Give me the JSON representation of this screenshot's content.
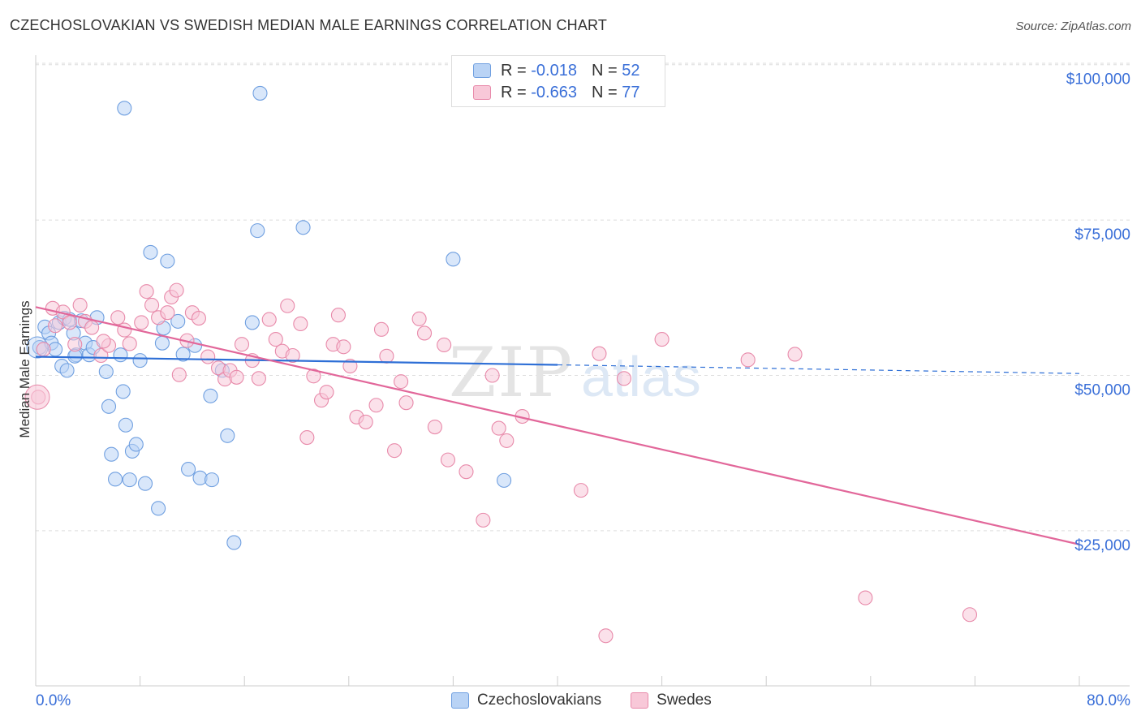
{
  "title": "CZECHOSLOVAKIAN VS SWEDISH MEDIAN MALE EARNINGS CORRELATION CHART",
  "source": "Source: ZipAtlas.com",
  "colors": {
    "blue_fill": "#b9d3f5",
    "blue_stroke": "#6f9fe0",
    "blue_line": "#2e6fd6",
    "pink_fill": "#f8c8d8",
    "pink_stroke": "#e88aaa",
    "pink_line": "#e2679a",
    "tick_label": "#3a6fd8"
  },
  "legend": {
    "rows": [
      {
        "r_label": "R =",
        "r_value": "-0.018",
        "n_label": "N =",
        "n_value": "52"
      },
      {
        "r_label": "R =",
        "r_value": "-0.663",
        "n_label": "N =",
        "n_value": "77"
      }
    ],
    "bottom": [
      "Czechoslovakians",
      "Swedes"
    ]
  },
  "chart_data": {
    "type": "scatter",
    "title": "CZECHOSLOVAKIAN VS SWEDISH MEDIAN MALE EARNINGS CORRELATION CHART",
    "xlabel": "",
    "ylabel": "Median Male Earnings",
    "xlim": [
      0,
      80
    ],
    "ylim": [
      0,
      105000
    ],
    "x_tick_labels": [
      "0.0%",
      "80.0%"
    ],
    "y_ticks": [
      25000,
      50000,
      75000,
      100000
    ],
    "y_tick_labels": [
      "$25,000",
      "$50,000",
      "$75,000",
      "$100,000"
    ],
    "grid": true,
    "watermark": "ZIPatlas",
    "series": [
      {
        "name": "Czechoslovakians",
        "trend": {
          "x0": 0,
          "y0": 53000,
          "x1": 40,
          "y1": 51700,
          "dashed_to_x": 80,
          "dashed_y": 50300
        },
        "points": [
          [
            0.3,
            54500
          ],
          [
            0.7,
            57800
          ],
          [
            1.0,
            56800
          ],
          [
            1.2,
            55200
          ],
          [
            1.5,
            54200
          ],
          [
            1.8,
            58500
          ],
          [
            2.0,
            51500
          ],
          [
            2.2,
            59200
          ],
          [
            2.4,
            50800
          ],
          [
            2.6,
            59000
          ],
          [
            2.9,
            56800
          ],
          [
            3.1,
            53300
          ],
          [
            3.5,
            58800
          ],
          [
            3.8,
            55200
          ],
          [
            4.1,
            53300
          ],
          [
            4.4,
            54500
          ],
          [
            4.7,
            59300
          ],
          [
            5.4,
            50600
          ],
          [
            5.6,
            45000
          ],
          [
            5.8,
            37300
          ],
          [
            6.1,
            33300
          ],
          [
            6.5,
            53300
          ],
          [
            6.7,
            47400
          ],
          [
            6.9,
            42000
          ],
          [
            7.4,
            37800
          ],
          [
            7.7,
            38900
          ],
          [
            8.0,
            52400
          ],
          [
            8.4,
            32600
          ],
          [
            8.8,
            69800
          ],
          [
            9.4,
            28600
          ],
          [
            9.7,
            55200
          ],
          [
            9.8,
            57600
          ],
          [
            10.1,
            68400
          ],
          [
            10.9,
            58700
          ],
          [
            11.3,
            53400
          ],
          [
            11.7,
            34900
          ],
          [
            12.6,
            33500
          ],
          [
            13.5,
            33200
          ],
          [
            13.4,
            46700
          ],
          [
            14.3,
            50800
          ],
          [
            14.7,
            40300
          ],
          [
            15.2,
            23100
          ],
          [
            16.6,
            58500
          ],
          [
            17.0,
            73300
          ],
          [
            17.2,
            95400
          ],
          [
            20.5,
            73800
          ],
          [
            32.0,
            68700
          ],
          [
            35.9,
            33100
          ],
          [
            6.8,
            93000
          ],
          [
            3.0,
            53100
          ],
          [
            7.2,
            33200
          ],
          [
            12.2,
            54800
          ]
        ]
      },
      {
        "name": "Swedes",
        "trend": {
          "x0": 0,
          "y0": 61000,
          "x1": 80,
          "y1": 22800
        },
        "points": [
          [
            0.2,
            46500
          ],
          [
            0.6,
            54200
          ],
          [
            1.3,
            60800
          ],
          [
            2.1,
            60200
          ],
          [
            2.6,
            58500
          ],
          [
            3.4,
            61300
          ],
          [
            3.8,
            58700
          ],
          [
            4.3,
            57700
          ],
          [
            5.0,
            53200
          ],
          [
            5.6,
            54800
          ],
          [
            6.3,
            59300
          ],
          [
            6.8,
            57300
          ],
          [
            7.2,
            55100
          ],
          [
            8.1,
            58500
          ],
          [
            8.5,
            63500
          ],
          [
            8.9,
            61300
          ],
          [
            9.4,
            59300
          ],
          [
            10.1,
            60100
          ],
          [
            10.4,
            62600
          ],
          [
            10.8,
            63700
          ],
          [
            11.0,
            50100
          ],
          [
            11.6,
            55600
          ],
          [
            12.0,
            60100
          ],
          [
            12.5,
            59200
          ],
          [
            13.2,
            53000
          ],
          [
            14.0,
            51200
          ],
          [
            14.5,
            49400
          ],
          [
            14.9,
            50800
          ],
          [
            15.4,
            49700
          ],
          [
            15.8,
            55000
          ],
          [
            16.6,
            52400
          ],
          [
            17.1,
            49500
          ],
          [
            17.9,
            59000
          ],
          [
            18.4,
            55800
          ],
          [
            18.9,
            53900
          ],
          [
            19.3,
            61200
          ],
          [
            19.7,
            53200
          ],
          [
            20.3,
            58300
          ],
          [
            20.8,
            40000
          ],
          [
            21.3,
            49900
          ],
          [
            21.9,
            46000
          ],
          [
            22.3,
            47300
          ],
          [
            22.8,
            55000
          ],
          [
            23.2,
            59700
          ],
          [
            23.6,
            54600
          ],
          [
            24.1,
            51500
          ],
          [
            24.6,
            43300
          ],
          [
            25.3,
            42500
          ],
          [
            26.1,
            45200
          ],
          [
            26.5,
            57400
          ],
          [
            26.9,
            53100
          ],
          [
            27.5,
            37900
          ],
          [
            28.0,
            49000
          ],
          [
            28.4,
            45600
          ],
          [
            29.4,
            59100
          ],
          [
            29.8,
            56800
          ],
          [
            30.6,
            41700
          ],
          [
            31.3,
            54900
          ],
          [
            31.6,
            36400
          ],
          [
            33.0,
            34500
          ],
          [
            34.3,
            26700
          ],
          [
            35.0,
            50000
          ],
          [
            35.5,
            41500
          ],
          [
            36.1,
            39500
          ],
          [
            37.3,
            43400
          ],
          [
            41.8,
            31500
          ],
          [
            43.2,
            53500
          ],
          [
            43.7,
            8100
          ],
          [
            45.1,
            49500
          ],
          [
            48.0,
            55800
          ],
          [
            54.6,
            52500
          ],
          [
            58.2,
            53400
          ],
          [
            63.6,
            14200
          ],
          [
            71.6,
            11500
          ],
          [
            1.5,
            58000
          ],
          [
            3.0,
            55000
          ],
          [
            5.2,
            55500
          ]
        ]
      }
    ]
  }
}
